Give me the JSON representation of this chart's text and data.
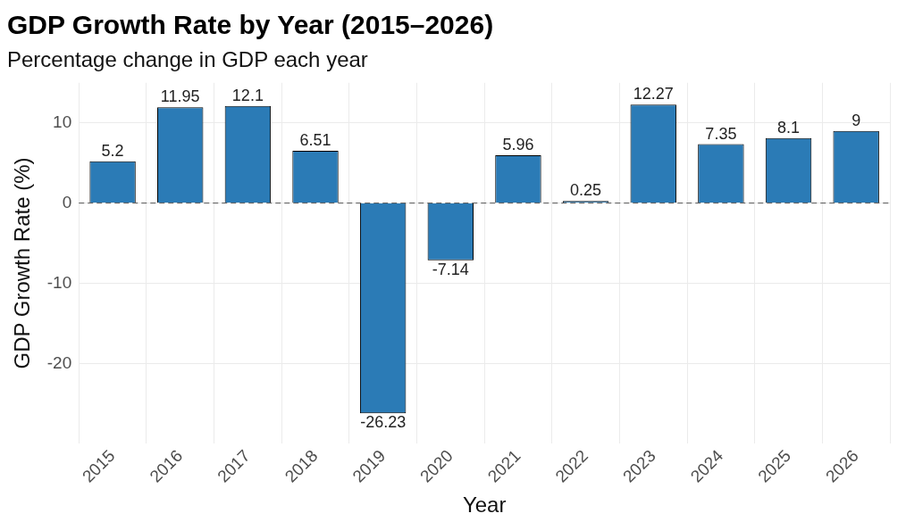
{
  "chart_data": {
    "type": "bar",
    "title": "GDP Growth Rate by Year (2015–2026)",
    "subtitle": "Percentage change in GDP each year",
    "xlabel": "Year",
    "ylabel": "GDP Growth Rate (%)",
    "categories": [
      "2015",
      "2016",
      "2017",
      "2018",
      "2019",
      "2020",
      "2021",
      "2022",
      "2023",
      "2024",
      "2025",
      "2026"
    ],
    "values": [
      5.2,
      11.95,
      12.1,
      6.51,
      -26.23,
      -7.14,
      5.96,
      0.25,
      12.27,
      7.35,
      8.1,
      9
    ],
    "color": "#2b7bb6",
    "ylim": [
      -30,
      15
    ],
    "yticks": [
      -20,
      -10,
      0,
      10
    ],
    "grid": true,
    "data_labels": true,
    "ref_lines": [
      {
        "axis": "y",
        "value": 0,
        "color": "#555555",
        "line_style": "dashed"
      }
    ]
  }
}
